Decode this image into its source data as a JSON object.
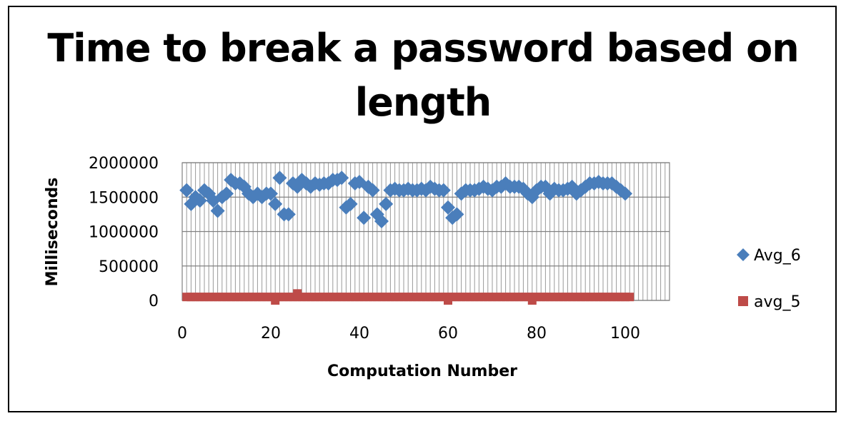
{
  "chart_data": {
    "type": "scatter",
    "title": "Time to break a password based on length",
    "xlabel": "Computation Number",
    "ylabel": "Milliseconds",
    "xlim": [
      0,
      110
    ],
    "ylim": [
      0,
      2000000
    ],
    "xticks": [
      0,
      20,
      40,
      60,
      80,
      100
    ],
    "yticks": [
      0,
      500000,
      1000000,
      1500000,
      2000000
    ],
    "grid": true,
    "legend_position": "right",
    "series": [
      {
        "name": "Avg_6",
        "color": "#4a7ebb",
        "marker": "diamond",
        "points": [
          [
            1,
            1600000
          ],
          [
            2,
            1400000
          ],
          [
            3,
            1500000
          ],
          [
            4,
            1450000
          ],
          [
            5,
            1600000
          ],
          [
            6,
            1550000
          ],
          [
            7,
            1450000
          ],
          [
            8,
            1300000
          ],
          [
            9,
            1500000
          ],
          [
            10,
            1550000
          ],
          [
            11,
            1750000
          ],
          [
            12,
            1700000
          ],
          [
            13,
            1700000
          ],
          [
            14,
            1650000
          ],
          [
            15,
            1550000
          ],
          [
            16,
            1500000
          ],
          [
            17,
            1550000
          ],
          [
            18,
            1500000
          ],
          [
            19,
            1550000
          ],
          [
            20,
            1550000
          ],
          [
            21,
            1400000
          ],
          [
            22,
            1780000
          ],
          [
            23,
            1250000
          ],
          [
            24,
            1250000
          ],
          [
            25,
            1700000
          ],
          [
            26,
            1650000
          ],
          [
            27,
            1750000
          ],
          [
            28,
            1700000
          ],
          [
            29,
            1650000
          ],
          [
            30,
            1700000
          ],
          [
            31,
            1680000
          ],
          [
            32,
            1700000
          ],
          [
            33,
            1700000
          ],
          [
            34,
            1750000
          ],
          [
            35,
            1750000
          ],
          [
            36,
            1780000
          ],
          [
            37,
            1350000
          ],
          [
            38,
            1400000
          ],
          [
            39,
            1700000
          ],
          [
            40,
            1720000
          ],
          [
            41,
            1200000
          ],
          [
            42,
            1650000
          ],
          [
            43,
            1600000
          ],
          [
            44,
            1250000
          ],
          [
            45,
            1150000
          ],
          [
            46,
            1400000
          ],
          [
            47,
            1600000
          ],
          [
            48,
            1620000
          ],
          [
            49,
            1600000
          ],
          [
            50,
            1600000
          ],
          [
            51,
            1620000
          ],
          [
            52,
            1600000
          ],
          [
            53,
            1600000
          ],
          [
            54,
            1620000
          ],
          [
            55,
            1600000
          ],
          [
            56,
            1650000
          ],
          [
            57,
            1620000
          ],
          [
            58,
            1600000
          ],
          [
            59,
            1600000
          ],
          [
            60,
            1350000
          ],
          [
            61,
            1200000
          ],
          [
            62,
            1250000
          ],
          [
            63,
            1550000
          ],
          [
            64,
            1600000
          ],
          [
            65,
            1600000
          ],
          [
            66,
            1600000
          ],
          [
            67,
            1620000
          ],
          [
            68,
            1650000
          ],
          [
            69,
            1620000
          ],
          [
            70,
            1600000
          ],
          [
            71,
            1650000
          ],
          [
            72,
            1650000
          ],
          [
            73,
            1700000
          ],
          [
            74,
            1650000
          ],
          [
            75,
            1650000
          ],
          [
            76,
            1650000
          ],
          [
            77,
            1620000
          ],
          [
            78,
            1550000
          ],
          [
            79,
            1500000
          ],
          [
            80,
            1600000
          ],
          [
            81,
            1650000
          ],
          [
            82,
            1650000
          ],
          [
            83,
            1550000
          ],
          [
            84,
            1620000
          ],
          [
            85,
            1600000
          ],
          [
            86,
            1600000
          ],
          [
            87,
            1620000
          ],
          [
            88,
            1650000
          ],
          [
            89,
            1550000
          ],
          [
            90,
            1600000
          ],
          [
            91,
            1650000
          ],
          [
            92,
            1700000
          ],
          [
            93,
            1700000
          ],
          [
            94,
            1720000
          ],
          [
            95,
            1700000
          ],
          [
            96,
            1700000
          ],
          [
            97,
            1700000
          ],
          [
            98,
            1650000
          ],
          [
            99,
            1600000
          ],
          [
            100,
            1550000
          ]
        ]
      },
      {
        "name": "avg_5",
        "color": "#be4b48",
        "marker": "square",
        "values_note_free": true,
        "points_constant": 50000,
        "x_range": [
          1,
          101
        ],
        "outliers": [
          [
            21,
            0
          ],
          [
            26,
            100000
          ],
          [
            60,
            0
          ],
          [
            79,
            0
          ]
        ]
      }
    ]
  }
}
